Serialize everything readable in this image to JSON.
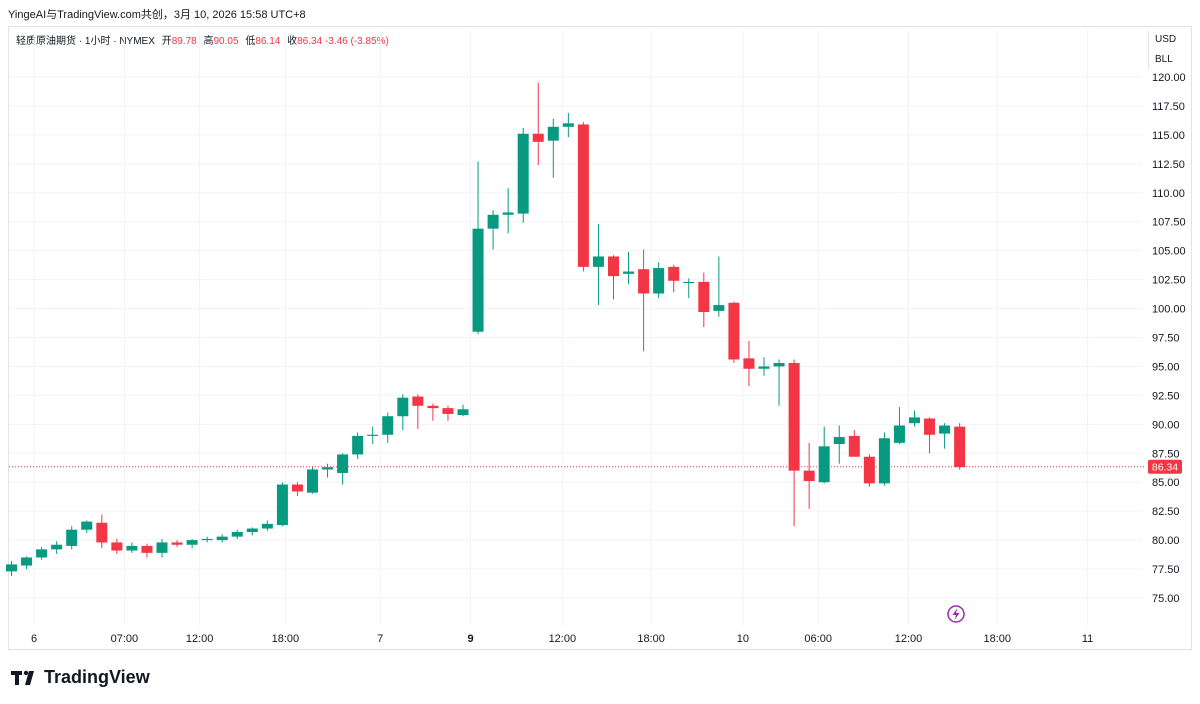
{
  "header": {
    "text": "YingeAI与TradingView.com共创，3月 10, 2026 15:58 UTC+8"
  },
  "legend": {
    "symbol": "轻质原油期货 · 1小时 · NYMEX",
    "open_label": "开",
    "open": "89.78",
    "high_label": "高",
    "high": "90.05",
    "low_label": "低",
    "low": "86.14",
    "close_label": "收",
    "close": "86.34",
    "change": "-3.46 (-3.85%)"
  },
  "unit": {
    "currency": "USD",
    "unit": "BLL"
  },
  "logo": {
    "text": "TradingView",
    "icon": "tradingview-logo-icon"
  },
  "colors": {
    "up": "#089981",
    "down": "#f23645",
    "grid": "#f0f3fa",
    "axis_text": "#131722"
  },
  "chart_data": {
    "type": "candlestick",
    "timeframe": "1小时",
    "ylim": [
      72.5,
      122
    ],
    "y_ticks": [
      75.0,
      77.5,
      80.0,
      82.5,
      85.0,
      87.5,
      90.0,
      92.5,
      95.0,
      97.5,
      100.0,
      102.5,
      105.0,
      107.5,
      110.0,
      112.5,
      115.0,
      117.5,
      120.0
    ],
    "y_tick_labels": [
      "75.00",
      "77.50",
      "80.00",
      "82.50",
      "85.00",
      "87.50",
      "90.00",
      "92.50",
      "95.00",
      "97.50",
      "100.00",
      "102.50",
      "105.00",
      "107.50",
      "110.00",
      "112.50",
      "115.00",
      "117.50",
      "120.00"
    ],
    "x_ticks": [
      {
        "label": "6",
        "bold": false,
        "index": 1.5
      },
      {
        "label": "07:00",
        "bold": false,
        "index": 7.5
      },
      {
        "label": "12:00",
        "bold": false,
        "index": 12.5
      },
      {
        "label": "18:00",
        "bold": false,
        "index": 18.2
      },
      {
        "label": "7",
        "bold": false,
        "index": 24.5
      },
      {
        "label": "9",
        "bold": true,
        "index": 30.5
      },
      {
        "label": "12:00",
        "bold": false,
        "index": 36.6
      },
      {
        "label": "18:00",
        "bold": false,
        "index": 42.5
      },
      {
        "label": "10",
        "bold": false,
        "index": 48.6
      },
      {
        "label": "06:00",
        "bold": false,
        "index": 53.6
      },
      {
        "label": "12:00",
        "bold": false,
        "index": 59.6
      },
      {
        "label": "18:00",
        "bold": false,
        "index": 65.5
      },
      {
        "label": "11",
        "bold": false,
        "index": 71.5
      }
    ],
    "last_price": 86.34,
    "last_price_label": "86.34",
    "candles": [
      {
        "o": 77.3,
        "h": 78.2,
        "l": 76.9,
        "c": 77.9
      },
      {
        "o": 77.8,
        "h": 78.6,
        "l": 77.5,
        "c": 78.5
      },
      {
        "o": 78.5,
        "h": 79.4,
        "l": 78.3,
        "c": 79.2
      },
      {
        "o": 79.2,
        "h": 79.9,
        "l": 78.8,
        "c": 79.6
      },
      {
        "o": 79.5,
        "h": 81.2,
        "l": 79.2,
        "c": 80.9
      },
      {
        "o": 80.9,
        "h": 81.7,
        "l": 80.6,
        "c": 81.6
      },
      {
        "o": 81.5,
        "h": 82.2,
        "l": 79.3,
        "c": 79.8
      },
      {
        "o": 79.8,
        "h": 80.1,
        "l": 78.8,
        "c": 79.1
      },
      {
        "o": 79.1,
        "h": 79.8,
        "l": 78.9,
        "c": 79.5
      },
      {
        "o": 79.5,
        "h": 79.7,
        "l": 78.5,
        "c": 78.9
      },
      {
        "o": 78.9,
        "h": 80.1,
        "l": 78.5,
        "c": 79.8
      },
      {
        "o": 79.8,
        "h": 80.0,
        "l": 79.4,
        "c": 79.6
      },
      {
        "o": 79.6,
        "h": 80.1,
        "l": 79.3,
        "c": 80.0
      },
      {
        "o": 80.0,
        "h": 80.3,
        "l": 79.8,
        "c": 80.1
      },
      {
        "o": 80.0,
        "h": 80.5,
        "l": 79.8,
        "c": 80.3
      },
      {
        "o": 80.3,
        "h": 80.9,
        "l": 80.1,
        "c": 80.7
      },
      {
        "o": 80.7,
        "h": 81.1,
        "l": 80.4,
        "c": 81.0
      },
      {
        "o": 81.0,
        "h": 81.7,
        "l": 80.8,
        "c": 81.4
      },
      {
        "o": 81.3,
        "h": 85.0,
        "l": 81.2,
        "c": 84.8
      },
      {
        "o": 84.8,
        "h": 85.0,
        "l": 83.8,
        "c": 84.2
      },
      {
        "o": 84.1,
        "h": 86.3,
        "l": 84.0,
        "c": 86.1
      },
      {
        "o": 86.1,
        "h": 86.6,
        "l": 85.4,
        "c": 86.3
      },
      {
        "o": 85.8,
        "h": 87.5,
        "l": 84.8,
        "c": 87.4
      },
      {
        "o": 87.4,
        "h": 89.3,
        "l": 87.0,
        "c": 89.0
      },
      {
        "o": 89.0,
        "h": 89.8,
        "l": 88.3,
        "c": 89.1
      },
      {
        "o": 89.1,
        "h": 91.0,
        "l": 88.4,
        "c": 90.7
      },
      {
        "o": 90.7,
        "h": 92.6,
        "l": 89.5,
        "c": 92.3
      },
      {
        "o": 92.4,
        "h": 92.6,
        "l": 89.6,
        "c": 91.6
      },
      {
        "o": 91.6,
        "h": 91.8,
        "l": 90.3,
        "c": 91.4
      },
      {
        "o": 91.4,
        "h": 91.6,
        "l": 90.3,
        "c": 90.9
      },
      {
        "o": 90.8,
        "h": 91.7,
        "l": 90.7,
        "c": 91.3
      },
      {
        "o": 98.0,
        "h": 112.7,
        "l": 97.8,
        "c": 106.9
      },
      {
        "o": 106.9,
        "h": 108.5,
        "l": 105.1,
        "c": 108.1
      },
      {
        "o": 108.1,
        "h": 110.4,
        "l": 106.5,
        "c": 108.3
      },
      {
        "o": 108.2,
        "h": 115.6,
        "l": 107.4,
        "c": 115.1
      },
      {
        "o": 115.1,
        "h": 119.5,
        "l": 112.4,
        "c": 114.4
      },
      {
        "o": 114.5,
        "h": 116.4,
        "l": 111.3,
        "c": 115.7
      },
      {
        "o": 115.7,
        "h": 116.9,
        "l": 114.8,
        "c": 116.0
      },
      {
        "o": 115.9,
        "h": 116.1,
        "l": 103.2,
        "c": 103.6
      },
      {
        "o": 103.6,
        "h": 107.3,
        "l": 100.3,
        "c": 104.5
      },
      {
        "o": 104.5,
        "h": 104.6,
        "l": 100.8,
        "c": 102.8
      },
      {
        "o": 103.0,
        "h": 104.9,
        "l": 102.1,
        "c": 103.2
      },
      {
        "o": 103.4,
        "h": 105.1,
        "l": 96.3,
        "c": 101.3
      },
      {
        "o": 101.3,
        "h": 104.0,
        "l": 100.9,
        "c": 103.5
      },
      {
        "o": 103.6,
        "h": 103.8,
        "l": 101.4,
        "c": 102.4
      },
      {
        "o": 102.2,
        "h": 102.6,
        "l": 100.9,
        "c": 102.3
      },
      {
        "o": 102.3,
        "h": 103.1,
        "l": 98.4,
        "c": 99.7
      },
      {
        "o": 99.8,
        "h": 104.5,
        "l": 99.3,
        "c": 100.3
      },
      {
        "o": 100.5,
        "h": 100.6,
        "l": 95.3,
        "c": 95.6
      },
      {
        "o": 95.7,
        "h": 97.2,
        "l": 93.3,
        "c": 94.8
      },
      {
        "o": 94.8,
        "h": 95.8,
        "l": 94.2,
        "c": 95.0
      },
      {
        "o": 95.0,
        "h": 95.6,
        "l": 91.6,
        "c": 95.3
      },
      {
        "o": 95.3,
        "h": 95.6,
        "l": 81.2,
        "c": 86.0
      },
      {
        "o": 86.0,
        "h": 88.4,
        "l": 82.7,
        "c": 85.1
      },
      {
        "o": 85.0,
        "h": 89.8,
        "l": 84.9,
        "c": 88.1
      },
      {
        "o": 88.3,
        "h": 89.9,
        "l": 86.6,
        "c": 88.9
      },
      {
        "o": 89.0,
        "h": 89.5,
        "l": 87.4,
        "c": 87.2
      },
      {
        "o": 87.2,
        "h": 87.4,
        "l": 84.6,
        "c": 84.9
      },
      {
        "o": 84.9,
        "h": 89.3,
        "l": 84.7,
        "c": 88.8
      },
      {
        "o": 88.4,
        "h": 91.5,
        "l": 88.3,
        "c": 89.9
      },
      {
        "o": 90.1,
        "h": 91.2,
        "l": 89.8,
        "c": 90.6
      },
      {
        "o": 90.5,
        "h": 90.6,
        "l": 87.5,
        "c": 89.1
      },
      {
        "o": 89.2,
        "h": 90.1,
        "l": 87.9,
        "c": 89.9
      },
      {
        "o": 89.8,
        "h": 90.1,
        "l": 86.1,
        "c": 86.3
      }
    ]
  }
}
